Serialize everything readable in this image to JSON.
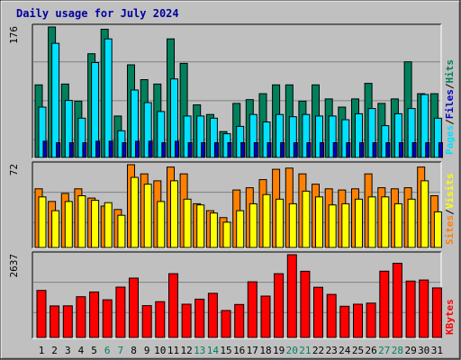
{
  "chart_data": {
    "type": "bar",
    "title": "Daily usage for July 2024",
    "days": [
      "1",
      "2",
      "3",
      "4",
      "5",
      "6",
      "7",
      "8",
      "9",
      "10",
      "11",
      "12",
      "13",
      "14",
      "15",
      "16",
      "17",
      "18",
      "19",
      "20",
      "21",
      "22",
      "23",
      "24",
      "25",
      "26",
      "27",
      "28",
      "29",
      "30",
      "31"
    ],
    "weekend_days": [
      "6",
      "7",
      "13",
      "14",
      "20",
      "21",
      "27",
      "28"
    ],
    "colors": {
      "hits": "#00805c",
      "files": "#00e0ff",
      "pages": "#0000c0",
      "visits": "#ff8000",
      "sites": "#ffff00",
      "kbytes": "#ff0000",
      "weekday_label": "#000000",
      "weekend_label": "#00805c",
      "title": "#0000a0",
      "panel_bg": "#c0c0c0",
      "frame": "#000000"
    },
    "panels": [
      {
        "id": "hits",
        "max_label": "176",
        "ymax": 176,
        "legend": [
          {
            "text": "Pages",
            "color": "#00e0ff"
          },
          {
            "text": "/",
            "color": "#000000"
          },
          {
            "text": "Files",
            "color": "#0000c0"
          },
          {
            "text": "/",
            "color": "#000000"
          },
          {
            "text": "Hits",
            "color": "#00805c"
          }
        ],
        "series": [
          {
            "name": "Hits",
            "color": "#00805c",
            "values": [
              98,
              176,
              99,
              76,
              140,
              173,
              56,
              125,
              105,
              99,
              160,
              127,
              71,
              58,
              35,
              73,
              78,
              86,
              98,
              98,
              76,
              98,
              79,
              68,
              79,
              100,
              73,
              79,
              129,
              86,
              86
            ]
          },
          {
            "name": "Files",
            "color": "#00e0ff",
            "values": [
              68,
              154,
              77,
              53,
              128,
              160,
              36,
              91,
              74,
              62,
              106,
              56,
              56,
              53,
              32,
              42,
              58,
              48,
              58,
              55,
              58,
              56,
              56,
              51,
              59,
              66,
              43,
              59,
              66,
              85,
              53
            ]
          },
          {
            "name": "Pages",
            "color": "#0000c0",
            "values": [
              22,
              20,
              20,
              20,
              22,
              22,
              20,
              22,
              22,
              20,
              22,
              20,
              20,
              20,
              20,
              20,
              20,
              20,
              20,
              20,
              20,
              20,
              20,
              20,
              20,
              20,
              20,
              20,
              20,
              20,
              20
            ]
          }
        ]
      },
      {
        "id": "visits",
        "max_label": "72",
        "ymax": 72,
        "legend": [
          {
            "text": "Sites",
            "color": "#ff8000"
          },
          {
            "text": "/",
            "color": "#000000"
          },
          {
            "text": "Visits",
            "color": "#ffff00"
          }
        ],
        "series": [
          {
            "name": "Visits",
            "color": "#ff8000",
            "values": [
              51,
              40,
              47,
              51,
              43,
              36,
              33,
              72,
              64,
              58,
              70,
              64,
              38,
              32,
              26,
              50,
              52,
              59,
              68,
              69,
              64,
              55,
              51,
              50,
              51,
              64,
              52,
              51,
              52,
              70,
              45
            ]
          },
          {
            "name": "Sites",
            "color": "#ffff00",
            "values": [
              44,
              32,
              40,
              45,
              41,
              39,
              28,
              61,
              55,
              40,
              58,
              42,
              37,
              30,
              22,
              32,
              38,
              46,
              42,
              38,
              49,
              44,
              37,
              38,
              42,
              44,
              44,
              38,
              42,
              58,
              31
            ]
          }
        ]
      },
      {
        "id": "kbytes",
        "max_label": "2637",
        "ymax": 2637,
        "legend": [
          {
            "text": "KBytes",
            "color": "#ff0000"
          }
        ],
        "series": [
          {
            "name": "KBytes",
            "color": "#ff0000",
            "values": [
              1500,
              1005,
              1008,
              1298,
              1450,
              1202,
              1605,
              1891,
              1015,
              1142,
              2031,
              1060,
              1220,
              1407,
              859,
              1051,
              1775,
              1318,
              2033,
              2637,
              2109,
              1599,
              1372,
              995,
              1060,
              1094,
              2112,
              2364,
              1796,
              1832,
              1580
            ]
          }
        ]
      }
    ]
  }
}
